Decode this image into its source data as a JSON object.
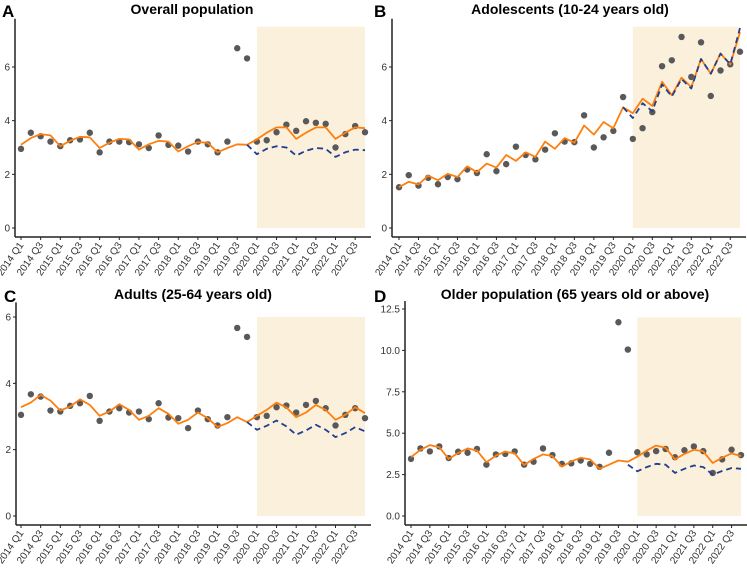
{
  "colors": {
    "points": "#595959",
    "fitted": "#ff7f0e",
    "counterfactual": "#1f3f8f",
    "shading": "#faf0dc"
  },
  "quarters": [
    "2014 Q1",
    "2014 Q2",
    "2014 Q3",
    "2014 Q4",
    "2015 Q1",
    "2015 Q2",
    "2015 Q3",
    "2015 Q4",
    "2016 Q1",
    "2016 Q2",
    "2016 Q3",
    "2016 Q4",
    "2017 Q1",
    "2017 Q2",
    "2017 Q3",
    "2017 Q4",
    "2018 Q1",
    "2018 Q2",
    "2018 Q3",
    "2018 Q4",
    "2019 Q1",
    "2019 Q2",
    "2019 Q3",
    "2019 Q4",
    "2020 Q1",
    "2020 Q2",
    "2020 Q3",
    "2020 Q4",
    "2021 Q1",
    "2021 Q2",
    "2021 Q3",
    "2021 Q4",
    "2022 Q1",
    "2022 Q2",
    "2022 Q3",
    "2022 Q4"
  ],
  "chart_data": [
    {
      "type": "line",
      "panel": "A",
      "title": "Overall population",
      "x_tick_labels": [
        "2014 Q1",
        "2014 Q3",
        "2015 Q1",
        "2015 Q3",
        "2016 Q1",
        "2016 Q3",
        "2017 Q1",
        "2017 Q3",
        "2018 Q1",
        "2018 Q3",
        "2019 Q1",
        "2019 Q3",
        "2020 Q1",
        "2020 Q3",
        "2021 Q1",
        "2021 Q3",
        "2022 Q1",
        "2022 Q3"
      ],
      "y_ticks": [
        "0",
        "2",
        "4",
        "6"
      ],
      "ylim": [
        0,
        7.5
      ],
      "shaded_period": {
        "from": "2020 Q1",
        "to": "2022 Q4",
        "ymax": 7.5
      },
      "series": [
        {
          "name": "observed",
          "kind": "points",
          "values": [
            2.95,
            3.55,
            3.42,
            3.22,
            3.05,
            3.27,
            3.3,
            3.55,
            2.82,
            3.22,
            3.22,
            3.2,
            3.12,
            2.98,
            3.45,
            3.1,
            3.07,
            2.85,
            3.22,
            3.12,
            2.82,
            3.22,
            6.7,
            6.32,
            3.22,
            3.27,
            3.57,
            3.85,
            3.62,
            3.98,
            3.92,
            3.88,
            3.0,
            3.5,
            3.8,
            3.57
          ]
        },
        {
          "name": "fitted",
          "kind": "line",
          "values": [
            3.1,
            3.35,
            3.5,
            3.45,
            3.05,
            3.25,
            3.4,
            3.38,
            2.98,
            3.18,
            3.32,
            3.3,
            2.92,
            3.12,
            3.25,
            3.22,
            2.85,
            3.05,
            3.2,
            3.18,
            2.82,
            2.98,
            3.12,
            3.1,
            3.3,
            3.55,
            3.75,
            3.75,
            3.32,
            3.55,
            3.75,
            3.75,
            3.32,
            3.55,
            3.75,
            3.72
          ]
        },
        {
          "name": "counterfactual",
          "kind": "dashed",
          "start": "2019 Q4",
          "values": [
            3.1,
            2.75,
            2.95,
            3.05,
            3.0,
            2.7,
            2.88,
            2.98,
            2.95,
            2.65,
            2.82,
            2.92,
            2.9
          ]
        }
      ]
    },
    {
      "type": "line",
      "panel": "B",
      "title": "Adolescents (10-24 years old)",
      "x_tick_labels": [
        "2014 Q1",
        "2014 Q3",
        "2015 Q1",
        "2015 Q3",
        "2016 Q1",
        "2016 Q3",
        "2017 Q1",
        "2017 Q3",
        "2018 Q1",
        "2018 Q3",
        "2019 Q1",
        "2019 Q3",
        "2020 Q1",
        "2020 Q3",
        "2021 Q1",
        "2021 Q3",
        "2022 Q1",
        "2022 Q3"
      ],
      "y_ticks": [
        "0",
        "2",
        "4",
        "6"
      ],
      "ylim": [
        0,
        7.5
      ],
      "shaded_period": {
        "from": "2020 Q1",
        "to": "2022 Q4",
        "ymax": 7.5
      },
      "series": [
        {
          "name": "observed",
          "kind": "points",
          "values": [
            1.52,
            1.97,
            1.58,
            1.87,
            1.63,
            1.9,
            1.82,
            2.18,
            2.05,
            2.75,
            2.12,
            2.38,
            3.03,
            2.72,
            2.56,
            2.92,
            3.53,
            3.22,
            3.2,
            4.2,
            3.0,
            3.38,
            3.62,
            4.88,
            3.32,
            3.72,
            4.32,
            6.03,
            6.25,
            7.12,
            5.63,
            6.92,
            4.92,
            5.87,
            6.1,
            6.57
          ]
        },
        {
          "name": "fitted",
          "kind": "line",
          "values": [
            1.52,
            1.72,
            1.62,
            1.95,
            1.78,
            2.02,
            1.9,
            2.3,
            2.08,
            2.4,
            2.25,
            2.72,
            2.5,
            2.82,
            2.65,
            3.22,
            2.95,
            3.35,
            3.18,
            3.82,
            3.48,
            3.95,
            3.72,
            4.5,
            4.28,
            4.82,
            4.55,
            5.45,
            4.95,
            5.6,
            5.25,
            6.3,
            5.75,
            6.5,
            6.1,
            7.3
          ]
        },
        {
          "name": "counterfactual",
          "kind": "dashed",
          "start": "2019 Q4",
          "values": [
            4.5,
            4.1,
            4.65,
            4.35,
            5.35,
            4.9,
            5.55,
            5.2,
            6.3,
            5.75,
            6.5,
            6.1,
            7.45
          ]
        }
      ]
    },
    {
      "type": "line",
      "panel": "C",
      "title": "Adults (25-64 years old)",
      "x_tick_labels": [
        "2014 Q1",
        "2014 Q3",
        "2015 Q1",
        "2015 Q3",
        "2016 Q1",
        "2016 Q3",
        "2017 Q1",
        "2017 Q3",
        "2018 Q1",
        "2018 Q3",
        "2019 Q1",
        "2019 Q3",
        "2020 Q1",
        "2020 Q3",
        "2021 Q1",
        "2021 Q3",
        "2022 Q1",
        "2022 Q3"
      ],
      "y_ticks": [
        "0",
        "2",
        "4",
        "6"
      ],
      "ylim": [
        0,
        6.2
      ],
      "shaded_period": {
        "from": "2020 Q1",
        "to": "2022 Q4",
        "ymax": 6
      },
      "series": [
        {
          "name": "observed",
          "kind": "points",
          "values": [
            3.05,
            3.67,
            3.6,
            3.18,
            3.15,
            3.32,
            3.4,
            3.62,
            2.87,
            3.15,
            3.25,
            3.12,
            3.15,
            2.92,
            3.4,
            2.97,
            2.95,
            2.65,
            3.18,
            2.92,
            2.73,
            2.98,
            5.67,
            5.4,
            2.98,
            3.02,
            3.28,
            3.33,
            3.12,
            3.35,
            3.47,
            3.25,
            2.73,
            3.05,
            3.25,
            2.95
          ]
        },
        {
          "name": "fitted",
          "kind": "line",
          "values": [
            3.28,
            3.42,
            3.65,
            3.48,
            3.18,
            3.3,
            3.52,
            3.35,
            3.02,
            3.15,
            3.37,
            3.2,
            2.9,
            3.02,
            3.25,
            3.08,
            2.78,
            2.9,
            3.12,
            2.95,
            2.68,
            2.8,
            2.98,
            2.83,
            3.02,
            3.2,
            3.42,
            3.27,
            2.98,
            3.12,
            3.35,
            3.2,
            2.9,
            3.05,
            3.28,
            3.1
          ]
        },
        {
          "name": "counterfactual",
          "kind": "dashed",
          "start": "2019 Q4",
          "values": [
            2.83,
            2.6,
            2.72,
            2.88,
            2.7,
            2.45,
            2.58,
            2.75,
            2.6,
            2.38,
            2.5,
            2.68,
            2.55
          ]
        }
      ]
    },
    {
      "type": "line",
      "panel": "D",
      "title": "Older population (65 years old or above)",
      "x_tick_labels": [
        "2014 Q1",
        "2014 Q3",
        "2015 Q1",
        "2015 Q3",
        "2016 Q1",
        "2016 Q3",
        "2017 Q1",
        "2017 Q3",
        "2018 Q1",
        "2018 Q3",
        "2019 Q1",
        "2019 Q3",
        "2020 Q1",
        "2020 Q3",
        "2021 Q1",
        "2021 Q3",
        "2022 Q1",
        "2022 Q3"
      ],
      "y_ticks": [
        "0.0",
        "2.5",
        "5.0",
        "7.5",
        "10.0",
        "12.5"
      ],
      "ylim": [
        0,
        12.5
      ],
      "shaded_period": {
        "from": "2020 Q1",
        "to": "2022 Q4",
        "ymax": 12
      },
      "series": [
        {
          "name": "observed",
          "kind": "points",
          "values": [
            3.45,
            4.08,
            3.9,
            4.2,
            3.5,
            3.88,
            3.82,
            4.05,
            3.1,
            3.72,
            3.75,
            3.9,
            3.1,
            3.28,
            4.08,
            3.68,
            3.15,
            3.18,
            3.35,
            3.15,
            2.97,
            3.82,
            11.7,
            10.05,
            3.85,
            3.72,
            3.92,
            4.05,
            3.55,
            3.97,
            4.2,
            3.92,
            2.6,
            3.42,
            4.0,
            3.68
          ]
        },
        {
          "name": "fitted",
          "kind": "line",
          "values": [
            3.55,
            4.0,
            4.28,
            4.15,
            3.45,
            3.8,
            4.08,
            3.95,
            3.25,
            3.65,
            3.88,
            3.78,
            3.08,
            3.45,
            3.72,
            3.62,
            2.98,
            3.3,
            3.52,
            3.42,
            2.85,
            3.1,
            3.35,
            3.28,
            3.58,
            3.95,
            4.25,
            4.12,
            3.42,
            3.75,
            4.0,
            3.9,
            3.2,
            3.52,
            3.78,
            3.62
          ]
        },
        {
          "name": "counterfactual",
          "kind": "dashed",
          "start": "2019 Q4",
          "values": [
            3.1,
            2.7,
            2.95,
            3.15,
            3.1,
            2.6,
            2.85,
            3.05,
            2.95,
            2.5,
            2.72,
            2.9,
            2.85
          ]
        }
      ]
    }
  ]
}
